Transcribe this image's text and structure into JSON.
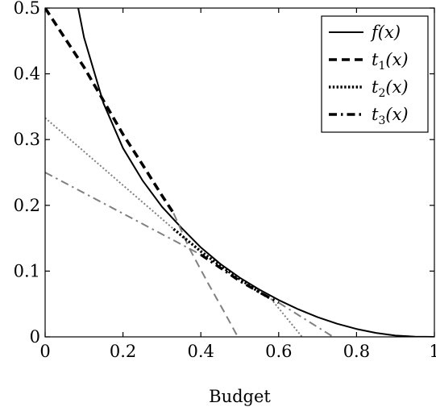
{
  "chart_data": {
    "type": "line",
    "title": "",
    "xlabel": "Budget",
    "ylabel": "",
    "xlim": [
      0,
      1
    ],
    "ylim": [
      0,
      0.5
    ],
    "x_ticks": [
      "0",
      "0.2",
      "0.4",
      "0.6",
      "0.8",
      "1"
    ],
    "y_ticks": [
      "0",
      "0.1",
      "0.2",
      "0.3",
      "0.4",
      "0.5"
    ],
    "grid": false,
    "legend_position": "top-right",
    "legend": [
      "f(x)",
      "t1(x)",
      "t2(x)",
      "t3(x)"
    ],
    "series": [
      {
        "name": "f(x)",
        "style": "solid",
        "color": "#000000",
        "points": [
          [
            0.085,
            0.5
          ],
          [
            0.1,
            0.455
          ],
          [
            0.15,
            0.355
          ],
          [
            0.2,
            0.287
          ],
          [
            0.25,
            0.238
          ],
          [
            0.3,
            0.198
          ],
          [
            0.35,
            0.166
          ],
          [
            0.4,
            0.136
          ],
          [
            0.45,
            0.111
          ],
          [
            0.5,
            0.09
          ],
          [
            0.55,
            0.072
          ],
          [
            0.6,
            0.056
          ],
          [
            0.65,
            0.042
          ],
          [
            0.7,
            0.03
          ],
          [
            0.75,
            0.02
          ],
          [
            0.8,
            0.012
          ],
          [
            0.85,
            0.006
          ],
          [
            0.9,
            0.002
          ],
          [
            0.95,
            0.0003
          ],
          [
            1.0,
            0.0
          ]
        ]
      },
      {
        "name": "t1(x)",
        "style": "dashed-thick",
        "color": "#000000",
        "points": [
          [
            0.0,
            0.5
          ],
          [
            0.1,
            0.41
          ],
          [
            0.2,
            0.308
          ],
          [
            0.25,
            0.262
          ],
          [
            0.3,
            0.215
          ],
          [
            0.33,
            0.188
          ]
        ]
      },
      {
        "name": "t1(x)",
        "style": "dashed-thin",
        "color": "#808080",
        "points": [
          [
            0.33,
            0.188
          ],
          [
            0.37,
            0.135
          ],
          [
            0.42,
            0.08
          ],
          [
            0.46,
            0.038
          ],
          [
            0.495,
            0.0
          ]
        ]
      },
      {
        "name": "t2(x)",
        "style": "dotted-thick",
        "color": "#000000",
        "points": [
          [
            0.33,
            0.164
          ],
          [
            0.4,
            0.13
          ],
          [
            0.45,
            0.108
          ],
          [
            0.5,
            0.088
          ],
          [
            0.55,
            0.068
          ],
          [
            0.58,
            0.058
          ]
        ]
      },
      {
        "name": "t2(x)",
        "style": "dotted-thin",
        "color": "#808080",
        "points": [
          [
            0.0,
            0.333
          ],
          [
            0.33,
            0.164
          ]
        ]
      },
      {
        "name": "t2(x)",
        "style": "dotted-thin",
        "color": "#808080",
        "points": [
          [
            0.58,
            0.058
          ],
          [
            0.66,
            0.0
          ]
        ]
      },
      {
        "name": "t3(x)",
        "style": "dashdot-thick",
        "color": "#000000",
        "points": [
          [
            0.4,
            0.125
          ],
          [
            0.45,
            0.105
          ],
          [
            0.5,
            0.085
          ],
          [
            0.55,
            0.068
          ],
          [
            0.6,
            0.052
          ]
        ]
      },
      {
        "name": "t3(x)",
        "style": "dashdot-thin",
        "color": "#808080",
        "points": [
          [
            0.0,
            0.25
          ],
          [
            0.4,
            0.125
          ]
        ]
      },
      {
        "name": "t3(x)",
        "style": "dashdot-thin",
        "color": "#808080",
        "points": [
          [
            0.6,
            0.052
          ],
          [
            0.74,
            0.0
          ]
        ]
      }
    ]
  },
  "legend_entries": [
    {
      "label_main": "f",
      "label_sub": "",
      "label_arg": "(x)",
      "style": "solid"
    },
    {
      "label_main": "t",
      "label_sub": "1",
      "label_arg": "(x)",
      "style": "dashed-thick"
    },
    {
      "label_main": "t",
      "label_sub": "2",
      "label_arg": "(x)",
      "style": "dotted-thick"
    },
    {
      "label_main": "t",
      "label_sub": "3",
      "label_arg": "(x)",
      "style": "dashdot-thick"
    }
  ]
}
